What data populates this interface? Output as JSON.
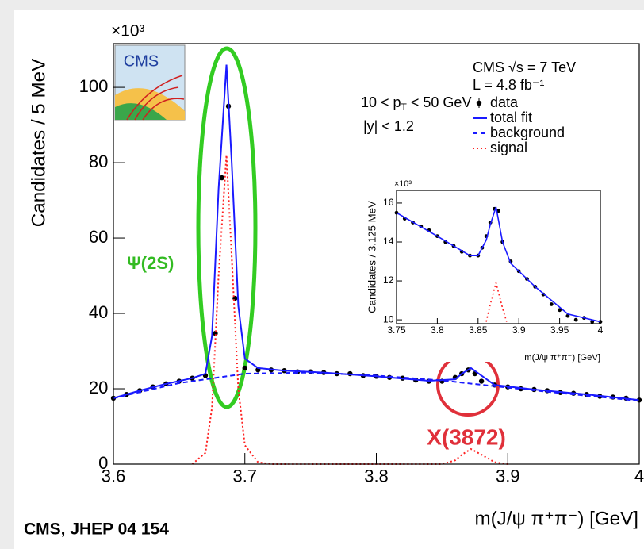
{
  "annotations": {
    "psi": "Ψ(2S)",
    "x3872": "X(3872)",
    "reference": "CMS, JHEP 04 154",
    "logo": "CMS"
  },
  "chart_data": [
    {
      "type": "line",
      "ylabel": "Candidates / 5 MeV",
      "xlabel": "m(J/ψ π⁺π⁻) [GeV]",
      "multiplier": "×10³",
      "experiment": "CMS  √s = 7 TeV",
      "lumi": "L = 4.8 fb⁻¹",
      "pt_cut": [
        "10 < p",
        "T",
        " < 50 GeV"
      ],
      "y_cut": "|y| < 1.2",
      "xlim": [
        3.6,
        4.0
      ],
      "ylim": [
        0,
        111.6
      ],
      "xticks": [
        3.6,
        3.7,
        3.8,
        3.9,
        4
      ],
      "yticks": [
        0,
        20,
        40,
        60,
        80,
        100
      ],
      "grid": false,
      "legend": "upper right",
      "series": [
        {
          "name": "data",
          "color": "#000000",
          "style": "points",
          "x": [
            3.6,
            3.61,
            3.62,
            3.63,
            3.64,
            3.65,
            3.66,
            3.67,
            3.6775,
            3.6825,
            3.6875,
            3.6925,
            3.7,
            3.71,
            3.72,
            3.73,
            3.74,
            3.75,
            3.76,
            3.77,
            3.78,
            3.79,
            3.8,
            3.81,
            3.82,
            3.83,
            3.84,
            3.85,
            3.86,
            3.865,
            3.87,
            3.875,
            3.88,
            3.89,
            3.9,
            3.91,
            3.92,
            3.93,
            3.94,
            3.95,
            3.96,
            3.97,
            3.98,
            3.99,
            4.0
          ],
          "values": [
            17.5,
            18.5,
            19.5,
            20.5,
            21.3,
            22,
            22.8,
            23.5,
            34.7,
            76,
            95,
            44,
            25.5,
            25,
            25,
            24.8,
            24.5,
            24.5,
            24.3,
            24,
            24,
            23.5,
            23.3,
            23,
            22.8,
            22.3,
            22,
            22,
            23,
            24,
            25,
            24,
            22,
            21,
            20.5,
            20,
            19.8,
            19.5,
            19,
            18.8,
            18.5,
            18,
            17.8,
            17.5,
            17
          ]
        },
        {
          "name": "total fit",
          "color": "#1a1aff",
          "style": "solid",
          "x": [
            3.6,
            3.62,
            3.64,
            3.66,
            3.67,
            3.675,
            3.68,
            3.686,
            3.69,
            3.695,
            3.7,
            3.71,
            3.73,
            3.76,
            3.8,
            3.84,
            3.86,
            3.865,
            3.872,
            3.88,
            3.89,
            3.92,
            3.96,
            4.0
          ],
          "values": [
            17.5,
            19.5,
            21.3,
            22.8,
            24,
            34,
            73,
            106,
            80,
            42,
            28,
            25.5,
            24.8,
            24.3,
            23.3,
            22.1,
            22.5,
            24,
            25.5,
            23.5,
            21,
            19.8,
            18.5,
            17
          ]
        },
        {
          "name": "background",
          "color": "#1a1aff",
          "style": "dashed",
          "x": [
            3.6,
            3.65,
            3.7,
            3.75,
            3.8,
            3.85,
            3.9,
            3.95,
            4.0
          ],
          "values": [
            17.5,
            21.5,
            24,
            24.3,
            23.5,
            22.2,
            20.3,
            18.5,
            16.8
          ]
        },
        {
          "name": "signal",
          "color": "#ff2020",
          "style": "dotted",
          "x": [
            3.66,
            3.67,
            3.675,
            3.68,
            3.686,
            3.69,
            3.695,
            3.7,
            3.71,
            3.72,
            3.85,
            3.86,
            3.865,
            3.872,
            3.88,
            3.89,
            3.9
          ],
          "values": [
            0,
            3,
            15,
            50,
            82,
            55,
            20,
            5,
            0.5,
            0,
            0,
            1,
            2.5,
            4,
            2.5,
            0.5,
            0
          ]
        }
      ]
    },
    {
      "type": "line",
      "ylabel": "Candidates / 3.125 MeV",
      "xlabel": "m(J/ψ π⁺π⁻) [GeV]",
      "multiplier": "×10³",
      "xlim": [
        3.75,
        4.0
      ],
      "ylim": [
        9.8,
        16.65
      ],
      "xticks": [
        3.75,
        3.8,
        3.85,
        3.9,
        3.95,
        4
      ],
      "yticks": [
        10,
        12,
        14,
        16
      ],
      "grid": false,
      "series": [
        {
          "color": "#000000",
          "style": "points",
          "x": [
            3.75,
            3.76,
            3.77,
            3.78,
            3.79,
            3.8,
            3.81,
            3.82,
            3.83,
            3.84,
            3.85,
            3.855,
            3.86,
            3.865,
            3.87,
            3.875,
            3.88,
            3.89,
            3.9,
            3.91,
            3.92,
            3.93,
            3.94,
            3.95,
            3.96,
            3.97,
            3.98,
            3.99,
            4.0
          ],
          "values": [
            15.5,
            15.2,
            15.0,
            14.8,
            14.6,
            14.3,
            14.0,
            13.8,
            13.5,
            13.3,
            13.3,
            13.7,
            14.3,
            15.0,
            15.7,
            15.6,
            14.0,
            13.0,
            12.5,
            12.1,
            11.7,
            11.3,
            10.8,
            10.5,
            10.2,
            10.0,
            10.1,
            9.9,
            9.9
          ]
        },
        {
          "color": "#1a1aff",
          "style": "solid",
          "x": [
            3.75,
            3.8,
            3.84,
            3.85,
            3.86,
            3.865,
            3.872,
            3.88,
            3.89,
            3.92,
            3.96,
            4.0
          ],
          "values": [
            15.5,
            14.3,
            13.3,
            13.3,
            14.1,
            14.9,
            15.8,
            14.0,
            12.9,
            11.7,
            10.3,
            9.9
          ]
        },
        {
          "color": "#ff2020",
          "style": "dotted",
          "x": [
            3.86,
            3.865,
            3.872,
            3.88,
            3.885
          ],
          "values": [
            9.9,
            10.8,
            11.9,
            10.6,
            9.9
          ]
        }
      ]
    }
  ]
}
